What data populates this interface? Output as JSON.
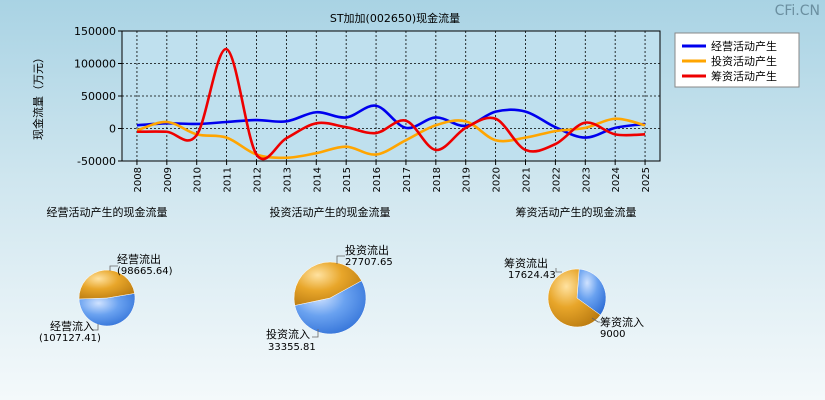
{
  "watermark": "CFi.CN",
  "colors": {
    "operating": "#0000ee",
    "investing": "#ffa500",
    "financing": "#ee0000",
    "inflow": "#4f8fe8",
    "outflow": "#e8a020"
  },
  "chart_data": [
    {
      "type": "line",
      "title": "ST加加(002650)现金流量",
      "ylabel": "现金流量（万元）",
      "ylim": [
        -50000,
        150000
      ],
      "yticks": [
        -50000,
        0,
        50000,
        100000,
        150000
      ],
      "ytick_labels": [
        "-50000",
        "0",
        "50000",
        "100000",
        "150000"
      ],
      "x": [
        "2008",
        "2009",
        "2010",
        "2011",
        "2012",
        "2013",
        "2014",
        "2015",
        "2016",
        "2017",
        "2018",
        "2019",
        "2020",
        "2021",
        "2022",
        "2023",
        "2024",
        "2025"
      ],
      "grid": true,
      "legend_position": "top-right",
      "series": [
        {
          "name": "经营活动产生",
          "color_key": "operating",
          "values": [
            5000,
            8000,
            7000,
            10000,
            13000,
            11000,
            25000,
            17000,
            35000,
            1000,
            17000,
            4000,
            26000,
            26000,
            2000,
            -14000,
            1000,
            7000
          ]
        },
        {
          "name": "投资活动产生",
          "color_key": "investing",
          "values": [
            -3000,
            10000,
            -9000,
            -14000,
            -40000,
            -45000,
            -38000,
            -28000,
            -40000,
            -18000,
            5000,
            11000,
            -18000,
            -14000,
            -4000,
            1000,
            15000,
            5000
          ]
        },
        {
          "name": "筹资活动产生",
          "color_key": "financing",
          "values": [
            -5000,
            -5000,
            -10000,
            122000,
            -40000,
            -15000,
            8000,
            2000,
            -7000,
            12000,
            -33000,
            1000,
            15000,
            -33000,
            -24000,
            9000,
            -9000,
            -9000
          ]
        }
      ]
    },
    {
      "type": "pie",
      "title": "经营活动产生的现金流量",
      "slices": [
        {
          "label": "经营流入",
          "value_text": "(107127.41)",
          "value": 107127.41,
          "color_key": "inflow"
        },
        {
          "label": "经营流出",
          "value_text": "(98665.64)",
          "value": 98665.64,
          "color_key": "outflow"
        }
      ]
    },
    {
      "type": "pie",
      "title": "投资活动产生的现金流量",
      "slices": [
        {
          "label": "投资流入",
          "value_text": "33355.81",
          "value": 33355.81,
          "color_key": "inflow"
        },
        {
          "label": "投资流出",
          "value_text": "27707.65",
          "value": 27707.65,
          "color_key": "outflow"
        }
      ]
    },
    {
      "type": "pie",
      "title": "筹资活动产生的现金流量",
      "slices": [
        {
          "label": "筹资流入",
          "value_text": "9000",
          "value": 9000,
          "color_key": "inflow"
        },
        {
          "label": "筹资流出",
          "value_text": "17624.43",
          "value": 17624.43,
          "color_key": "outflow"
        }
      ]
    }
  ]
}
